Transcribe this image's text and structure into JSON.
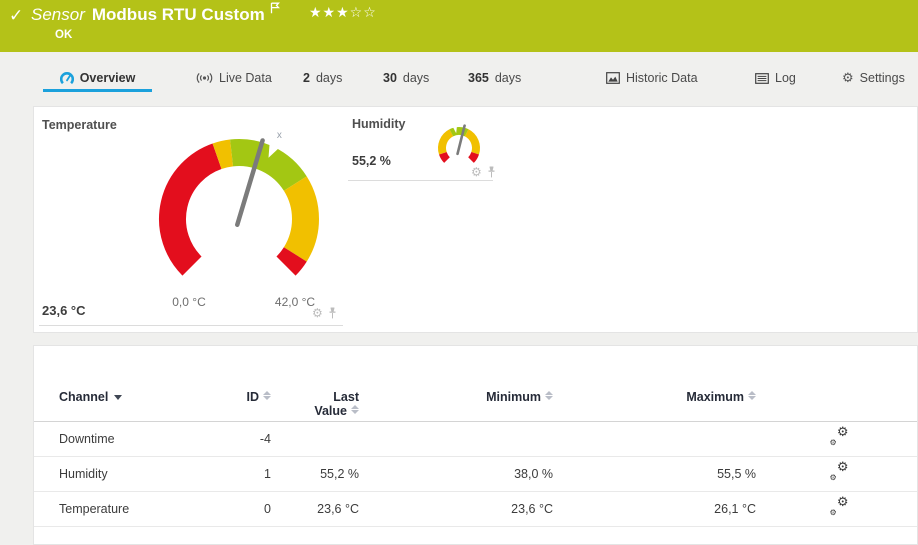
{
  "header": {
    "kind": "Sensor",
    "name": "Modbus RTU Custom",
    "status": "OK",
    "rating_filled": "★★★",
    "rating_empty": "☆☆",
    "status_color": "#b4c218"
  },
  "tabs": {
    "overview": "Overview",
    "live_data": "Live Data",
    "days2_num": "2",
    "days2_unit": "days",
    "days30_num": "30",
    "days30_unit": "days",
    "days365_num": "365",
    "days365_unit": "days",
    "historic": "Historic Data",
    "log": "Log",
    "settings": "Settings"
  },
  "colors": {
    "accent_blue": "#1ba1dc",
    "gauge_red": "#e30e1d",
    "gauge_yellow": "#f1c000",
    "gauge_green": "#a3c713",
    "needle_gray": "#7b7b7b"
  },
  "gauges": [
    {
      "title": "Temperature",
      "value": 23.6,
      "value_label": "23,6 °C",
      "min": 0,
      "max": 42,
      "min_label": "0,0 °C",
      "max_label": "42,0 °C",
      "average": 25,
      "average_marker": "x",
      "segments": [
        {
          "from": 0,
          "to": 18,
          "color": "#e30e1d"
        },
        {
          "from": 18,
          "to": 20,
          "color": "#f1c000"
        },
        {
          "from": 20,
          "to": 30,
          "color": "#a3c713"
        },
        {
          "from": 30,
          "to": 40,
          "color": "#f1c000"
        },
        {
          "from": 40,
          "to": 42,
          "color": "#e30e1d"
        }
      ]
    },
    {
      "title": "Humidity",
      "value": 55.2,
      "value_label": "55,2 %",
      "min": 0,
      "max": 100,
      "average": 46,
      "segments": [
        {
          "from": 0,
          "to": 10,
          "color": "#e30e1d"
        },
        {
          "from": 10,
          "to": 40,
          "color": "#f1c000"
        },
        {
          "from": 40,
          "to": 60,
          "color": "#a3c713"
        },
        {
          "from": 60,
          "to": 90,
          "color": "#f1c000"
        },
        {
          "from": 90,
          "to": 100,
          "color": "#e30e1d"
        }
      ]
    }
  ],
  "table": {
    "headers": {
      "channel": "Channel",
      "id": "ID",
      "last_line1": "Last",
      "last_line2": "Value",
      "minimum": "Minimum",
      "maximum": "Maximum"
    },
    "rows": [
      {
        "channel": "Downtime",
        "id": "-4",
        "last_value": "",
        "minimum": "",
        "maximum": ""
      },
      {
        "channel": "Humidity",
        "id": "1",
        "last_value": "55,2 %",
        "minimum": "38,0 %",
        "maximum": "55,5 %"
      },
      {
        "channel": "Temperature",
        "id": "0",
        "last_value": "23,6 °C",
        "minimum": "23,6 °C",
        "maximum": "26,1 °C"
      }
    ]
  }
}
